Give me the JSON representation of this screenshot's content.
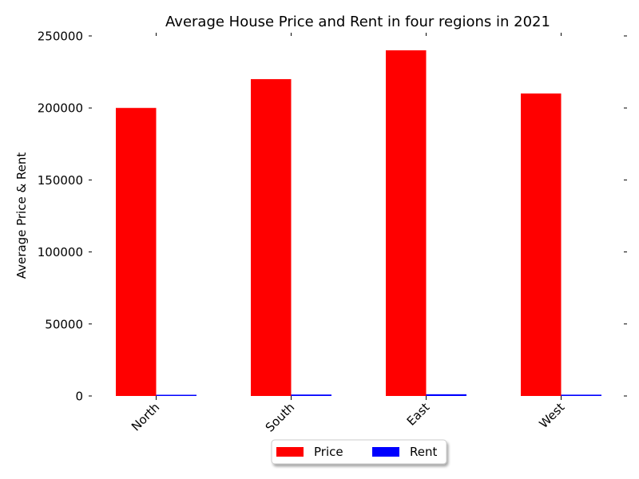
{
  "chart_data": {
    "type": "bar",
    "title": "Average House Price and Rent in four regions in 2021",
    "xlabel": "",
    "ylabel": "Average Price & Rent",
    "categories": [
      "North",
      "South",
      "East",
      "West"
    ],
    "series": [
      {
        "name": "Price",
        "color": "#ff0000",
        "values": [
          200000,
          220000,
          240000,
          210000
        ]
      },
      {
        "name": "Rent",
        "color": "#0000ff",
        "values": [
          800,
          1000,
          1200,
          900
        ]
      }
    ],
    "ylim": [
      0,
      250000
    ],
    "yticks": [
      0,
      50000,
      100000,
      150000,
      200000,
      250000
    ],
    "ytick_labels": [
      "0",
      "50000",
      "100000",
      "150000",
      "200000",
      "250000"
    ],
    "grid": false,
    "legend_position": "bottom-center"
  }
}
